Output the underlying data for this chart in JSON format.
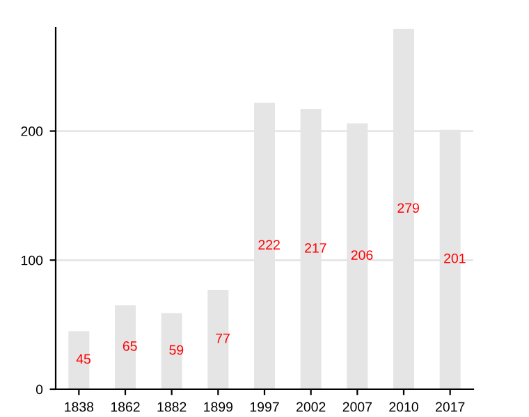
{
  "chart_data": {
    "type": "bar",
    "categories": [
      "1838",
      "1862",
      "1882",
      "1899",
      "1997",
      "2002",
      "2007",
      "2010",
      "2017"
    ],
    "values": [
      45,
      65,
      59,
      77,
      222,
      217,
      206,
      279,
      201
    ],
    "color": "#e5e5e5",
    "ylim": [
      0,
      280
    ],
    "yticks": [
      0,
      100,
      200
    ],
    "grid": "y",
    "data_labels": true
  }
}
